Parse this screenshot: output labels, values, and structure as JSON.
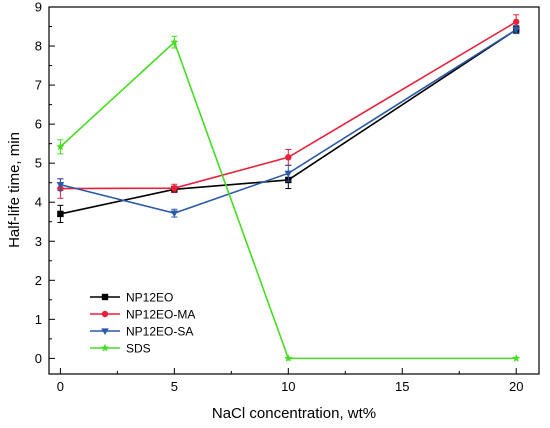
{
  "chart_data": {
    "type": "line",
    "title": "",
    "xlabel": "NaCl concentration, wt%",
    "ylabel": "Half-life time, min",
    "xlim": [
      -0.5,
      21
    ],
    "ylim": [
      -0.4,
      9
    ],
    "xticks": [
      0,
      5,
      10,
      15,
      20
    ],
    "yticks": [
      0,
      1,
      2,
      3,
      4,
      5,
      6,
      7,
      8,
      9
    ],
    "grid": false,
    "legend_position": "bottom-left",
    "series": [
      {
        "name": "NP12EO",
        "color": "#000000",
        "marker": "square",
        "x": [
          0,
          5,
          10,
          20
        ],
        "y": [
          3.7,
          4.33,
          4.57,
          8.42
        ],
        "err": [
          0.22,
          0.08,
          0.22,
          0.1
        ]
      },
      {
        "name": "NP12EO-MA",
        "color": "#e8203a",
        "marker": "circle",
        "x": [
          0,
          5,
          10,
          20
        ],
        "y": [
          4.35,
          4.36,
          5.15,
          8.62
        ],
        "err": [
          0.25,
          0.1,
          0.2,
          0.18
        ]
      },
      {
        "name": "NP12EO-SA",
        "color": "#2b5aa8",
        "marker": "triangle-down",
        "x": [
          0,
          5,
          10,
          20
        ],
        "y": [
          4.45,
          3.72,
          4.74,
          8.42
        ],
        "err": [
          0.15,
          0.1,
          0.2,
          0.1
        ]
      },
      {
        "name": "SDS",
        "color": "#44dd22",
        "marker": "star",
        "x": [
          0,
          5,
          10,
          20
        ],
        "y": [
          5.42,
          8.1,
          0.0,
          0.0
        ],
        "err": [
          0.18,
          0.15,
          0.0,
          0.0
        ]
      }
    ]
  }
}
